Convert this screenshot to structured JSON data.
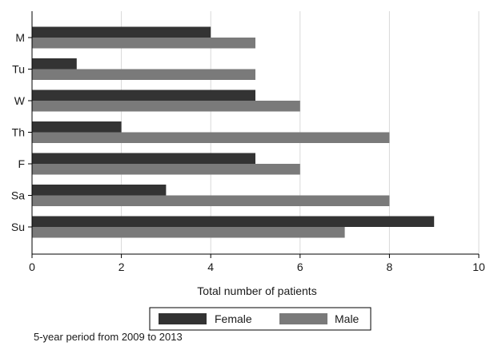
{
  "chart_data": {
    "type": "bar",
    "orientation": "horizontal",
    "categories": [
      "M",
      "Tu",
      "W",
      "Th",
      "F",
      "Sa",
      "Su"
    ],
    "series": [
      {
        "name": "Female",
        "values": [
          4,
          1,
          5,
          2,
          5,
          3,
          9
        ],
        "color": "#333333"
      },
      {
        "name": "Male",
        "values": [
          5,
          5,
          6,
          8,
          6,
          8,
          7
        ],
        "color": "#7a7a7a"
      }
    ],
    "xlabel": "Total number of patients",
    "ylabel": "",
    "xlim": [
      0,
      10
    ],
    "xticks": [
      "0",
      "2",
      "4",
      "6",
      "8",
      "10"
    ],
    "grid": true,
    "legend_position": "bottom",
    "note": "5-year period from 2009 to 2013"
  }
}
